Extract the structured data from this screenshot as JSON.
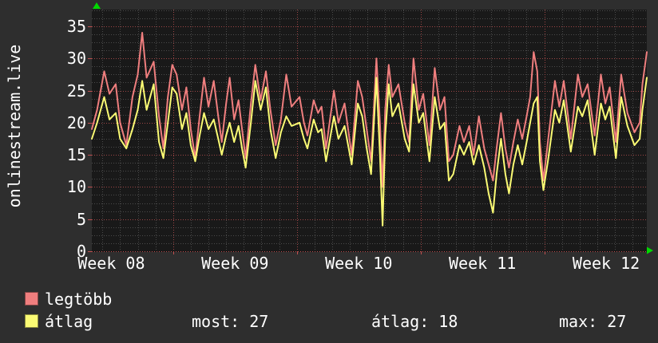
{
  "y_axis_title": "onlinestream.live",
  "colors": {
    "background": "#2e2e2e",
    "plot_background": "#191919",
    "major_grid": "#9e4646",
    "axis_line": "#c05050",
    "minor_grid": "#4b4b4b",
    "arrow": "#00d800",
    "text": "#ffffff"
  },
  "legend": [
    {
      "label": "legtöbb",
      "color": "#ef7e7e"
    },
    {
      "label": "átlag",
      "color": "#fbfb74"
    }
  ],
  "stats": [
    "most: 27",
    "átlag: 18",
    "max: 27"
  ],
  "chart_data": {
    "type": "line",
    "title": "",
    "xlabel": "",
    "ylabel": "onlinestream.live",
    "grid": true,
    "legend_position": "bottom-left",
    "ylim": [
      0,
      37.6
    ],
    "yticks": [
      0,
      5,
      10,
      15,
      20,
      25,
      30,
      35
    ],
    "minor_y_step": 1.25,
    "x_unit": "days",
    "x_range_days": [
      0,
      31.4
    ],
    "week_boundaries_days": [
      4.6,
      11.6,
      18.6,
      25.6
    ],
    "minor_x_step_days": 1,
    "xtick_labels": [
      {
        "label": "Week 08",
        "t": 1.1
      },
      {
        "label": "Week 09",
        "t": 8.1
      },
      {
        "label": "Week 10",
        "t": 15.1
      },
      {
        "label": "Week 11",
        "t": 22.1
      },
      {
        "label": "Week 12",
        "t": 29.1
      }
    ],
    "x": [
      0,
      0.3,
      0.7,
      1.0,
      1.35,
      1.6,
      1.95,
      2.3,
      2.6,
      2.85,
      3.1,
      3.5,
      3.8,
      4.05,
      4.3,
      4.55,
      4.8,
      5.1,
      5.35,
      5.6,
      5.85,
      6.1,
      6.35,
      6.6,
      6.9,
      7.15,
      7.35,
      7.6,
      7.8,
      8.05,
      8.3,
      8.5,
      8.7,
      9.0,
      9.25,
      9.55,
      9.85,
      10.1,
      10.4,
      10.7,
      11.0,
      11.3,
      11.75,
      12.0,
      12.2,
      12.55,
      12.8,
      13.0,
      13.25,
      13.7,
      13.95,
      14.3,
      14.7,
      15.05,
      15.3,
      15.55,
      15.8,
      16.1,
      16.3,
      16.45,
      16.6,
      16.8,
      17.0,
      17.35,
      17.7,
      17.95,
      18.2,
      18.5,
      18.75,
      19.1,
      19.4,
      19.7,
      19.95,
      20.2,
      20.45,
      20.8,
      21.05,
      21.35,
      21.6,
      21.9,
      22.2,
      22.45,
      22.7,
      22.9,
      23.15,
      23.4,
      23.6,
      23.85,
      24.1,
      24.35,
      24.6,
      24.8,
      25.0,
      25.2,
      25.35,
      25.55,
      25.8,
      26.2,
      26.45,
      26.7,
      27.1,
      27.5,
      27.75,
      28.05,
      28.45,
      28.8,
      29.05,
      29.3,
      29.65,
      29.95,
      30.3,
      30.7,
      31.0,
      31.15,
      31.4
    ],
    "series": [
      {
        "name": "legtöbb",
        "color": "#ef7e7e",
        "values": [
          19,
          22,
          28,
          24.5,
          26,
          20,
          16.5,
          24,
          27.5,
          34,
          27,
          29.5,
          21,
          16,
          24,
          29,
          27.5,
          22,
          25.5,
          19,
          14.5,
          21,
          27,
          22.5,
          26.5,
          21,
          17,
          23,
          27,
          20.5,
          23.5,
          19,
          14.5,
          23,
          29,
          23.5,
          28,
          22,
          16.5,
          20.5,
          27.5,
          22.5,
          24,
          20,
          18,
          23.5,
          21.5,
          22.5,
          16,
          25,
          20,
          23,
          15,
          26.5,
          24,
          19,
          14,
          30,
          20,
          10,
          22,
          29,
          24,
          26,
          20,
          17,
          30,
          22,
          24.5,
          16.5,
          28.5,
          22,
          24,
          14,
          15,
          19.5,
          17,
          19.5,
          15,
          21,
          16,
          13.5,
          11,
          16,
          21.5,
          16,
          13,
          17,
          20.5,
          17.5,
          21,
          24,
          31,
          28,
          17,
          11,
          17,
          26.5,
          22.5,
          26.5,
          17.5,
          27.5,
          24,
          26,
          18,
          27.5,
          23,
          25.5,
          17,
          27.5,
          21.5,
          18.5,
          20,
          26,
          31
        ]
      },
      {
        "name": "átlag",
        "color": "#fbfb74",
        "values": [
          17.5,
          20,
          24,
          20.5,
          21.5,
          17.5,
          16,
          19,
          22,
          26.5,
          22,
          26,
          17,
          14.5,
          20,
          25.5,
          24.5,
          19,
          21.5,
          16.5,
          14,
          18,
          21.5,
          19,
          20.5,
          17.5,
          15,
          18,
          20,
          17,
          19.5,
          16,
          13,
          20,
          26.5,
          22,
          25.5,
          19,
          14.5,
          18.5,
          21,
          19.5,
          20,
          17.5,
          16,
          20.5,
          18.5,
          19,
          14,
          21,
          17.5,
          19.5,
          13.5,
          23,
          21,
          16,
          12,
          27,
          15,
          4,
          18,
          26,
          21,
          23,
          17.5,
          15.5,
          26,
          20,
          21.5,
          14,
          24,
          19,
          20,
          11,
          12,
          16.5,
          15,
          17,
          13.5,
          16.5,
          13,
          9,
          6,
          12,
          17.5,
          12,
          9,
          13.5,
          16.5,
          13.5,
          17,
          20,
          23,
          24,
          14,
          9.5,
          14,
          22,
          20,
          23.5,
          15.5,
          22.5,
          21,
          23.5,
          15,
          23,
          20.5,
          22.5,
          14.5,
          24,
          19.5,
          16.5,
          17.5,
          22,
          27
        ]
      }
    ]
  }
}
